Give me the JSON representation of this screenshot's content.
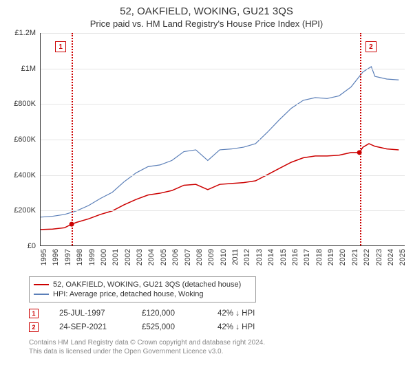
{
  "title": "52, OAKFIELD, WOKING, GU21 3QS",
  "subtitle": "Price paid vs. HM Land Registry's House Price Index (HPI)",
  "chart": {
    "type": "line",
    "background_color": "#ffffff",
    "grid_color": "#e5e5e5",
    "axis_color": "#333333",
    "y": {
      "min": 0,
      "max": 1200000,
      "ticks": [
        0,
        200000,
        400000,
        600000,
        800000,
        1000000,
        1200000
      ],
      "labels": [
        "£0",
        "£200K",
        "£400K",
        "£600K",
        "£800K",
        "£1M",
        "£1.2M"
      ],
      "label_fontsize": 11
    },
    "x": {
      "min": 1995,
      "max": 2025.5,
      "ticks": [
        1995,
        1996,
        1997,
        1998,
        1999,
        2000,
        2001,
        2002,
        2003,
        2004,
        2005,
        2006,
        2007,
        2008,
        2009,
        2010,
        2011,
        2012,
        2013,
        2014,
        2015,
        2016,
        2017,
        2018,
        2019,
        2020,
        2021,
        2022,
        2023,
        2024,
        2025
      ],
      "label_fontsize": 11,
      "label_rotation": -90
    },
    "series": [
      {
        "name": "52, OAKFIELD, WOKING, GU21 3QS (detached house)",
        "color": "#cc0000",
        "line_width": 1.5,
        "data": [
          [
            1995,
            90000
          ],
          [
            1996,
            92000
          ],
          [
            1997,
            100000
          ],
          [
            1997.6,
            120000
          ],
          [
            1998,
            130000
          ],
          [
            1999,
            150000
          ],
          [
            2000,
            175000
          ],
          [
            2001,
            195000
          ],
          [
            2002,
            230000
          ],
          [
            2003,
            260000
          ],
          [
            2004,
            285000
          ],
          [
            2005,
            295000
          ],
          [
            2006,
            310000
          ],
          [
            2007,
            340000
          ],
          [
            2008,
            345000
          ],
          [
            2009,
            315000
          ],
          [
            2010,
            345000
          ],
          [
            2011,
            350000
          ],
          [
            2012,
            355000
          ],
          [
            2013,
            365000
          ],
          [
            2014,
            400000
          ],
          [
            2015,
            435000
          ],
          [
            2016,
            470000
          ],
          [
            2017,
            495000
          ],
          [
            2018,
            505000
          ],
          [
            2019,
            505000
          ],
          [
            2020,
            510000
          ],
          [
            2021,
            525000
          ],
          [
            2021.7,
            525000
          ],
          [
            2022,
            555000
          ],
          [
            2022.5,
            575000
          ],
          [
            2023,
            560000
          ],
          [
            2024,
            545000
          ],
          [
            2025,
            540000
          ]
        ]
      },
      {
        "name": "HPI: Average price, detached house, Woking",
        "color": "#5b7fb8",
        "line_width": 1.2,
        "data": [
          [
            1995,
            160000
          ],
          [
            1996,
            165000
          ],
          [
            1997,
            175000
          ],
          [
            1998,
            195000
          ],
          [
            1999,
            225000
          ],
          [
            2000,
            265000
          ],
          [
            2001,
            300000
          ],
          [
            2002,
            360000
          ],
          [
            2003,
            410000
          ],
          [
            2004,
            445000
          ],
          [
            2005,
            455000
          ],
          [
            2006,
            480000
          ],
          [
            2007,
            530000
          ],
          [
            2008,
            540000
          ],
          [
            2009,
            480000
          ],
          [
            2010,
            540000
          ],
          [
            2011,
            545000
          ],
          [
            2012,
            555000
          ],
          [
            2013,
            575000
          ],
          [
            2014,
            640000
          ],
          [
            2015,
            710000
          ],
          [
            2016,
            775000
          ],
          [
            2017,
            820000
          ],
          [
            2018,
            835000
          ],
          [
            2019,
            830000
          ],
          [
            2020,
            845000
          ],
          [
            2021,
            895000
          ],
          [
            2022,
            980000
          ],
          [
            2022.7,
            1010000
          ],
          [
            2023,
            955000
          ],
          [
            2024,
            940000
          ],
          [
            2025,
            935000
          ]
        ]
      }
    ],
    "event_markers": [
      {
        "num": "1",
        "x": 1997.6,
        "y": 120000,
        "line_color": "#cc0000"
      },
      {
        "num": "2",
        "x": 2021.7,
        "y": 525000,
        "line_color": "#cc0000"
      }
    ]
  },
  "legend": {
    "items": [
      {
        "label": "52, OAKFIELD, WOKING, GU21 3QS (detached house)",
        "color": "#cc0000"
      },
      {
        "label": "HPI: Average price, detached house, Woking",
        "color": "#5b7fb8"
      }
    ]
  },
  "sales": [
    {
      "num": "1",
      "date": "25-JUL-1997",
      "price": "£120,000",
      "delta": "42% ↓ HPI"
    },
    {
      "num": "2",
      "date": "24-SEP-2021",
      "price": "£525,000",
      "delta": "42% ↓ HPI"
    }
  ],
  "footer": {
    "line1": "Contains HM Land Registry data © Crown copyright and database right 2024.",
    "line2": "This data is licensed under the Open Government Licence v3.0."
  }
}
